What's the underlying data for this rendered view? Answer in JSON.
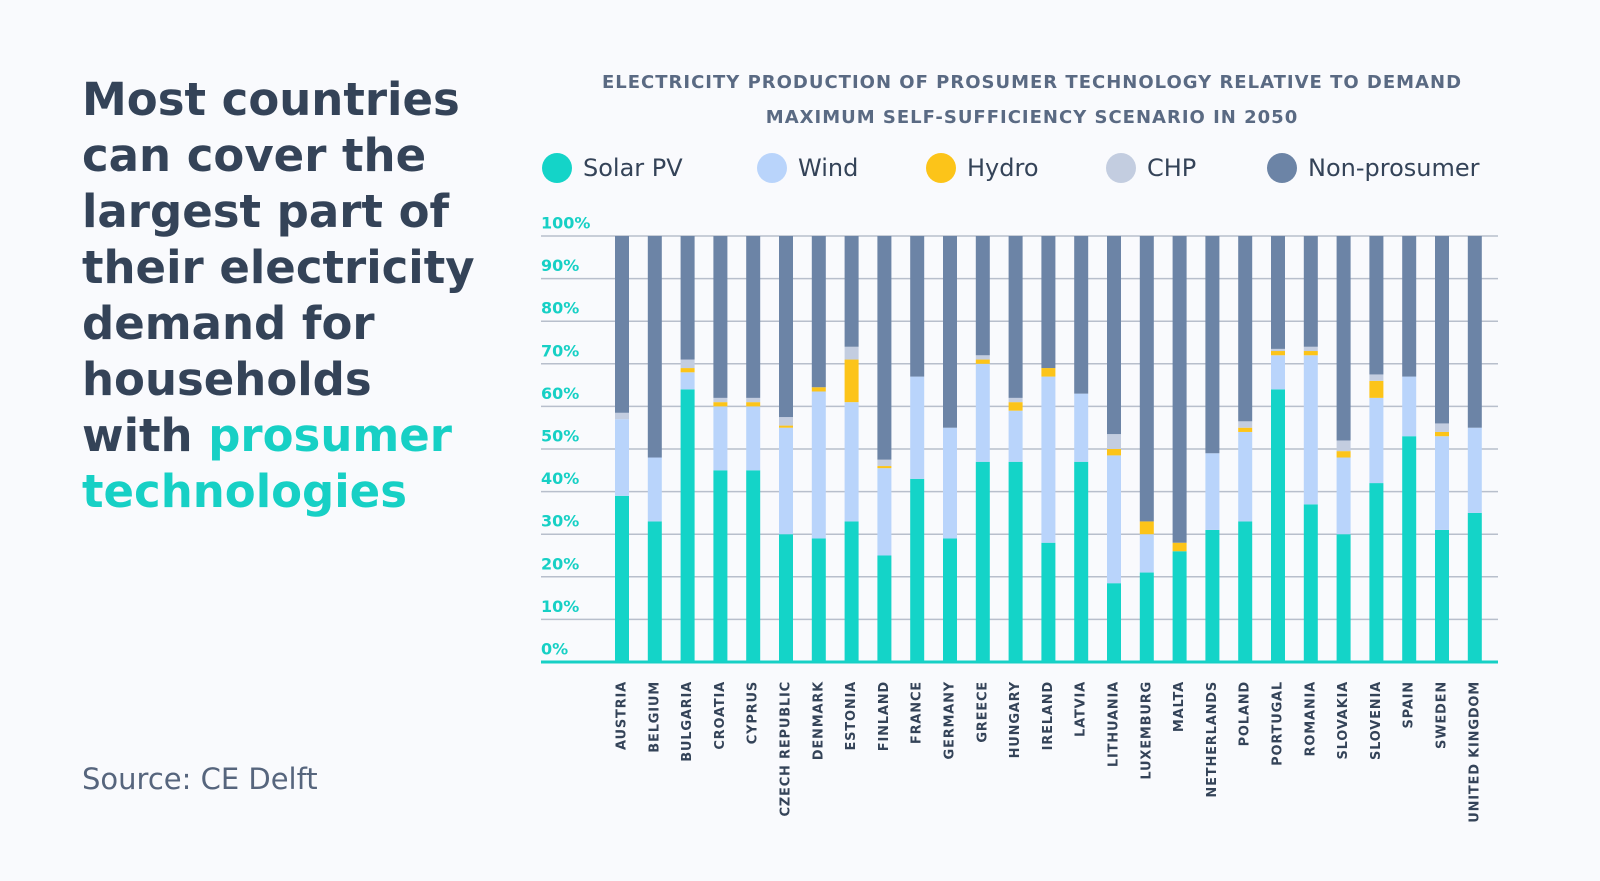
{
  "headline": "Most countries can cover the largest part of their electricity demand for households with",
  "headline_highlight": "prosumer technologies",
  "source": "Source: CE Delft",
  "chart_data": {
    "type": "stacked-bar",
    "title": "ELECTRICITY PRODUCTION OF PROSUMER TECHNOLOGY RELATIVE TO DEMAND",
    "subtitle": "MAXIMUM SELF-SUFFICIENCY SCENARIO IN 2050",
    "categories": [
      "AUSTRIA",
      "BELGIUM",
      "BULGARIA",
      "CROATIA",
      "CYPRUS",
      "CZECH REPUBLIC",
      "DENMARK",
      "ESTONIA",
      "FINLAND",
      "FRANCE",
      "GERMANY",
      "GREECE",
      "HUNGARY",
      "IRELAND",
      "LATVIA",
      "LITHUANIA",
      "LUXEMBURG",
      "MALTA",
      "NETHERLANDS",
      "POLAND",
      "PORTUGAL",
      "ROMANIA",
      "SLOVAKIA",
      "SLOVENIA",
      "SPAIN",
      "SWEDEN",
      "UNITED KINGDOM"
    ],
    "series": [
      {
        "name": "Solar PV",
        "color": "#14d4c8",
        "values": [
          39,
          33,
          64,
          45,
          45,
          30,
          29,
          33,
          25,
          43,
          29,
          47,
          47,
          28,
          47,
          18.5,
          21,
          26,
          31,
          33,
          64,
          37,
          30,
          42,
          53,
          31,
          35
        ]
      },
      {
        "name": "Wind",
        "color": "#b9d4fb",
        "values": [
          18,
          15,
          4,
          15,
          15,
          25,
          34.5,
          28,
          20.5,
          24,
          26,
          23,
          12,
          39,
          16,
          30,
          9,
          0,
          18,
          21,
          8,
          35,
          18,
          20,
          14,
          22,
          20
        ]
      },
      {
        "name": "Hydro",
        "color": "#fcc419",
        "values": [
          0,
          0,
          1,
          1,
          1,
          0.5,
          1,
          10,
          0.5,
          0,
          0,
          1,
          2,
          2,
          0,
          1.5,
          3,
          2,
          0,
          1,
          1,
          1,
          1.5,
          4,
          0,
          1,
          0
        ]
      },
      {
        "name": "CHP",
        "color": "#c3cde0",
        "values": [
          1.5,
          0,
          2,
          1,
          1,
          2,
          0,
          3,
          1.5,
          0,
          0,
          1,
          1,
          0,
          0,
          3.5,
          0,
          0,
          0,
          1.5,
          0.5,
          1,
          2.5,
          1.5,
          0,
          2,
          0
        ]
      },
      {
        "name": "Non-prosumer",
        "color": "#6c84a6",
        "values": [
          41.5,
          52,
          29,
          38,
          38,
          42.5,
          35.5,
          26,
          52.5,
          33,
          45,
          28,
          38,
          31,
          37,
          46.5,
          67,
          72,
          51,
          43.5,
          26.5,
          26,
          48,
          32.5,
          33,
          44,
          45
        ]
      }
    ],
    "ylim": [
      0,
      100
    ],
    "yticks": [
      {
        "value": 0,
        "label": "0%"
      },
      {
        "value": 10,
        "label": "10%"
      },
      {
        "value": 20,
        "label": "20%"
      },
      {
        "value": 30,
        "label": "30%"
      },
      {
        "value": 40,
        "label": "40%"
      },
      {
        "value": 50,
        "label": "50%"
      },
      {
        "value": 60,
        "label": "60%"
      },
      {
        "value": 70,
        "label": "70%"
      },
      {
        "value": 80,
        "label": "80%"
      },
      {
        "value": 90,
        "label": "90%"
      },
      {
        "value": 100,
        "label": "100%"
      }
    ],
    "grid": true,
    "legend": "top"
  }
}
